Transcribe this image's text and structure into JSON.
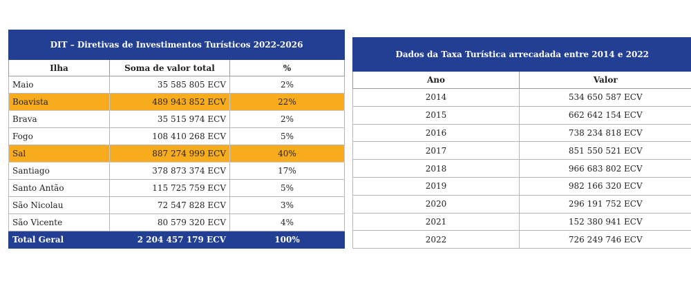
{
  "dit_table": {
    "title": "DIT – Diretivas de Investimentos Turísticos 2022-2026",
    "headers": [
      "Ilha",
      "Soma de valor total",
      "%"
    ],
    "rows": [
      {
        "ilha": "Maio",
        "valor": "35 585 805 ECV",
        "pct": "2%",
        "highlight": false
      },
      {
        "ilha": "Boavista",
        "valor": "489 943 852 ECV",
        "pct": "22%",
        "highlight": true
      },
      {
        "ilha": "Brava",
        "valor": "35 515 974 ECV",
        "pct": "2%",
        "highlight": false
      },
      {
        "ilha": "Fogo",
        "valor": "108 410 268 ECV",
        "pct": "5%",
        "highlight": false
      },
      {
        "ilha": "Sal",
        "valor": "887 274 999 ECV",
        "pct": "40%",
        "highlight": true
      },
      {
        "ilha": "Santiago",
        "valor": "378 873 374 ECV",
        "pct": "17%",
        "highlight": false
      },
      {
        "ilha": "Santo Antão",
        "valor": "115 725 759 ECV",
        "pct": "5%",
        "highlight": false
      },
      {
        "ilha": "São Nicolau",
        "valor": "72 547 828 ECV",
        "pct": "3%",
        "highlight": false
      },
      {
        "ilha": "São Vicente",
        "valor": "80 579 320 ECV",
        "pct": "4%",
        "highlight": false
      }
    ],
    "total": {
      "label": "Total Geral",
      "valor": "2 204 457 179 ECV",
      "pct": "100%"
    }
  },
  "taxa_table": {
    "title": "Dados da Taxa Turística arrecadada entre 2014 e 2022",
    "headers": [
      "Ano",
      "Valor"
    ],
    "rows": [
      {
        "ano": "2014",
        "valor": "534 650 587 ECV"
      },
      {
        "ano": "2015",
        "valor": "662 642 154 ECV"
      },
      {
        "ano": "2016",
        "valor": "738 234 818 ECV"
      },
      {
        "ano": "2017",
        "valor": "851 550 521 ECV"
      },
      {
        "ano": "2018",
        "valor": "966 683 802 ECV"
      },
      {
        "ano": "2019",
        "valor": "982 166 320 ECV"
      },
      {
        "ano": "2020",
        "valor": "296 191 752 ECV"
      },
      {
        "ano": "2021",
        "valor": "152 380 941 ECV"
      },
      {
        "ano": "2022",
        "valor": "726 249 746 ECV"
      }
    ]
  },
  "colors": {
    "header_blue": "#223f94",
    "highlight_orange": "#f7ac1e"
  }
}
